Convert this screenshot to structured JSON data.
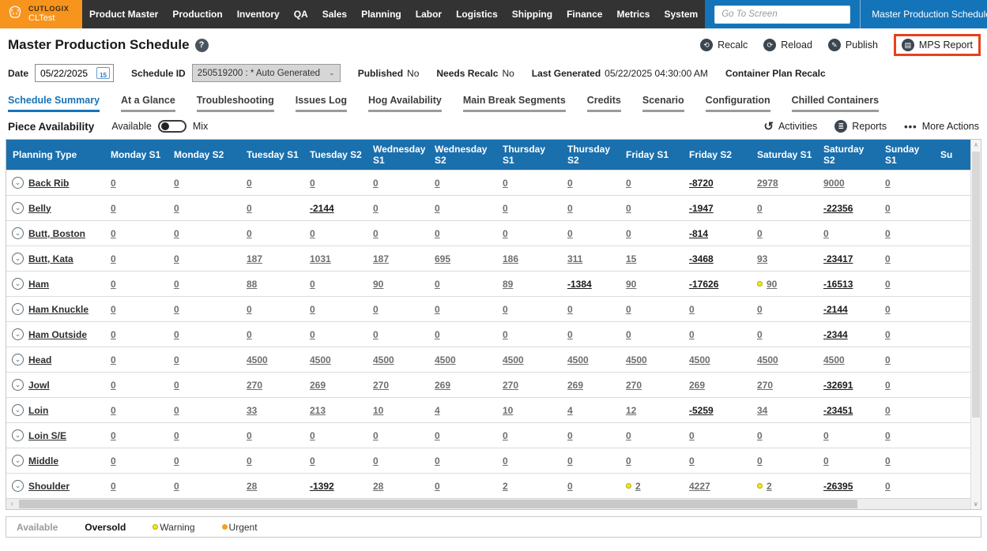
{
  "topbar": {
    "logo": {
      "brand": "CUTLOGIX",
      "env": "CLTest"
    },
    "menu": [
      "Product Master",
      "Production",
      "Inventory",
      "QA",
      "Sales",
      "Planning",
      "Labor",
      "Logistics",
      "Shipping",
      "Finance",
      "Metrics",
      "System"
    ],
    "goto_placeholder": "Go To Screen",
    "screen_selector": "Master Production Schedule",
    "nav": {
      "back": "←",
      "forward": "→",
      "close": "✕",
      "favorite": "☆"
    },
    "colors": {
      "bar": "#333333",
      "blue": "#1474ba",
      "logo_orange": "#f7941e"
    }
  },
  "header": {
    "title": "Master Production Schedule",
    "actions": [
      {
        "label": "Recalc",
        "icon": "recalc-icon",
        "highlighted": false
      },
      {
        "label": "Reload",
        "icon": "reload-icon",
        "highlighted": false
      },
      {
        "label": "Publish",
        "icon": "publish-icon",
        "highlighted": false
      },
      {
        "label": "MPS Report",
        "icon": "mps-report-icon",
        "highlighted": true
      }
    ],
    "highlight_color": "#e8411c"
  },
  "filters": {
    "date_label": "Date",
    "date_value": "05/22/2025",
    "calendar_day": "15",
    "schedule_id_label": "Schedule ID",
    "schedule_id_value": "250519200 : * Auto Generated",
    "published_label": "Published",
    "published_value": "No",
    "needs_recalc_label": "Needs Recalc",
    "needs_recalc_value": "No",
    "last_generated_label": "Last Generated",
    "last_generated_value": "05/22/2025 04:30:00 AM",
    "container_plan_label": "Container Plan Recalc"
  },
  "tabs": {
    "active": "Schedule Summary",
    "items": [
      "Schedule Summary",
      "At a Glance",
      "Troubleshooting",
      "Issues Log",
      "Hog Availability",
      "Main Break Segments",
      "Credits",
      "Scenario",
      "Configuration",
      "Chilled Containers"
    ]
  },
  "toolbar": {
    "section_title": "Piece Availability",
    "toggle_left": "Available",
    "toggle_right": "Mix",
    "toggle_state": "Available",
    "actions": [
      {
        "label": "Activities",
        "icon": "activities-icon"
      },
      {
        "label": "Reports",
        "icon": "reports-icon"
      },
      {
        "label": "More Actions",
        "icon": "more-actions-icon"
      }
    ]
  },
  "icons": {
    "recalc-icon": "⟲",
    "reload-icon": "⟳",
    "publish-icon": "✎",
    "mps-report-icon": "▤",
    "activities-icon": "↺",
    "reports-icon": "≣",
    "more-actions-icon": "•••",
    "chevron-down-icon": "⌄",
    "help-icon": "?"
  },
  "table": {
    "columns": [
      "Planning Type",
      "Monday S1",
      "Monday S2",
      "Tuesday S1",
      "Tuesday S2",
      "Wednesday S1",
      "Wednesday S2",
      "Thursday S1",
      "Thursday S2",
      "Friday S1",
      "Friday S2",
      "Saturday S1",
      "Saturday S2",
      "Sunday S1",
      "Su"
    ],
    "rows": [
      {
        "label": "Back Rib",
        "values": [
          "0",
          "0",
          "0",
          "0",
          "0",
          "0",
          "0",
          "0",
          "0",
          "-8720",
          "2978",
          "9000",
          "0"
        ],
        "warning_cols": []
      },
      {
        "label": "Belly",
        "values": [
          "0",
          "0",
          "0",
          "-2144",
          "0",
          "0",
          "0",
          "0",
          "0",
          "-1947",
          "0",
          "-22356",
          "0"
        ],
        "warning_cols": []
      },
      {
        "label": "Butt, Boston",
        "values": [
          "0",
          "0",
          "0",
          "0",
          "0",
          "0",
          "0",
          "0",
          "0",
          "-814",
          "0",
          "0",
          "0"
        ],
        "warning_cols": []
      },
      {
        "label": "Butt, Kata",
        "values": [
          "0",
          "0",
          "187",
          "1031",
          "187",
          "695",
          "186",
          "311",
          "15",
          "-3468",
          "93",
          "-23417",
          "0"
        ],
        "warning_cols": []
      },
      {
        "label": "Ham",
        "values": [
          "0",
          "0",
          "88",
          "0",
          "90",
          "0",
          "89",
          "-1384",
          "90",
          "-17626",
          "90",
          "-16513",
          "0"
        ],
        "warning_cols": [
          10
        ]
      },
      {
        "label": "Ham Knuckle",
        "values": [
          "0",
          "0",
          "0",
          "0",
          "0",
          "0",
          "0",
          "0",
          "0",
          "0",
          "0",
          "-2144",
          "0"
        ],
        "warning_cols": []
      },
      {
        "label": "Ham Outside",
        "values": [
          "0",
          "0",
          "0",
          "0",
          "0",
          "0",
          "0",
          "0",
          "0",
          "0",
          "0",
          "-2344",
          "0"
        ],
        "warning_cols": []
      },
      {
        "label": "Head",
        "values": [
          "0",
          "0",
          "4500",
          "4500",
          "4500",
          "4500",
          "4500",
          "4500",
          "4500",
          "4500",
          "4500",
          "4500",
          "0"
        ],
        "warning_cols": []
      },
      {
        "label": "Jowl",
        "values": [
          "0",
          "0",
          "270",
          "269",
          "270",
          "269",
          "270",
          "269",
          "270",
          "269",
          "270",
          "-32691",
          "0"
        ],
        "warning_cols": []
      },
      {
        "label": "Loin",
        "values": [
          "0",
          "0",
          "33",
          "213",
          "10",
          "4",
          "10",
          "4",
          "12",
          "-5259",
          "34",
          "-23451",
          "0"
        ],
        "warning_cols": []
      },
      {
        "label": "Loin S/E",
        "values": [
          "0",
          "0",
          "0",
          "0",
          "0",
          "0",
          "0",
          "0",
          "0",
          "0",
          "0",
          "0",
          "0"
        ],
        "warning_cols": []
      },
      {
        "label": "Middle",
        "values": [
          "0",
          "0",
          "0",
          "0",
          "0",
          "0",
          "0",
          "0",
          "0",
          "0",
          "0",
          "0",
          "0"
        ],
        "warning_cols": []
      },
      {
        "label": "Shoulder",
        "values": [
          "0",
          "0",
          "28",
          "-1392",
          "28",
          "0",
          "2",
          "0",
          "2",
          "4227",
          "2",
          "-26395",
          "0"
        ],
        "warning_cols": [
          8,
          10
        ]
      }
    ]
  },
  "legend": {
    "available": "Available",
    "oversold": "Oversold",
    "warning": "Warning",
    "urgent": "Urgent",
    "warning_color": "#f0e71e",
    "urgent_color": "#f0a31f"
  }
}
